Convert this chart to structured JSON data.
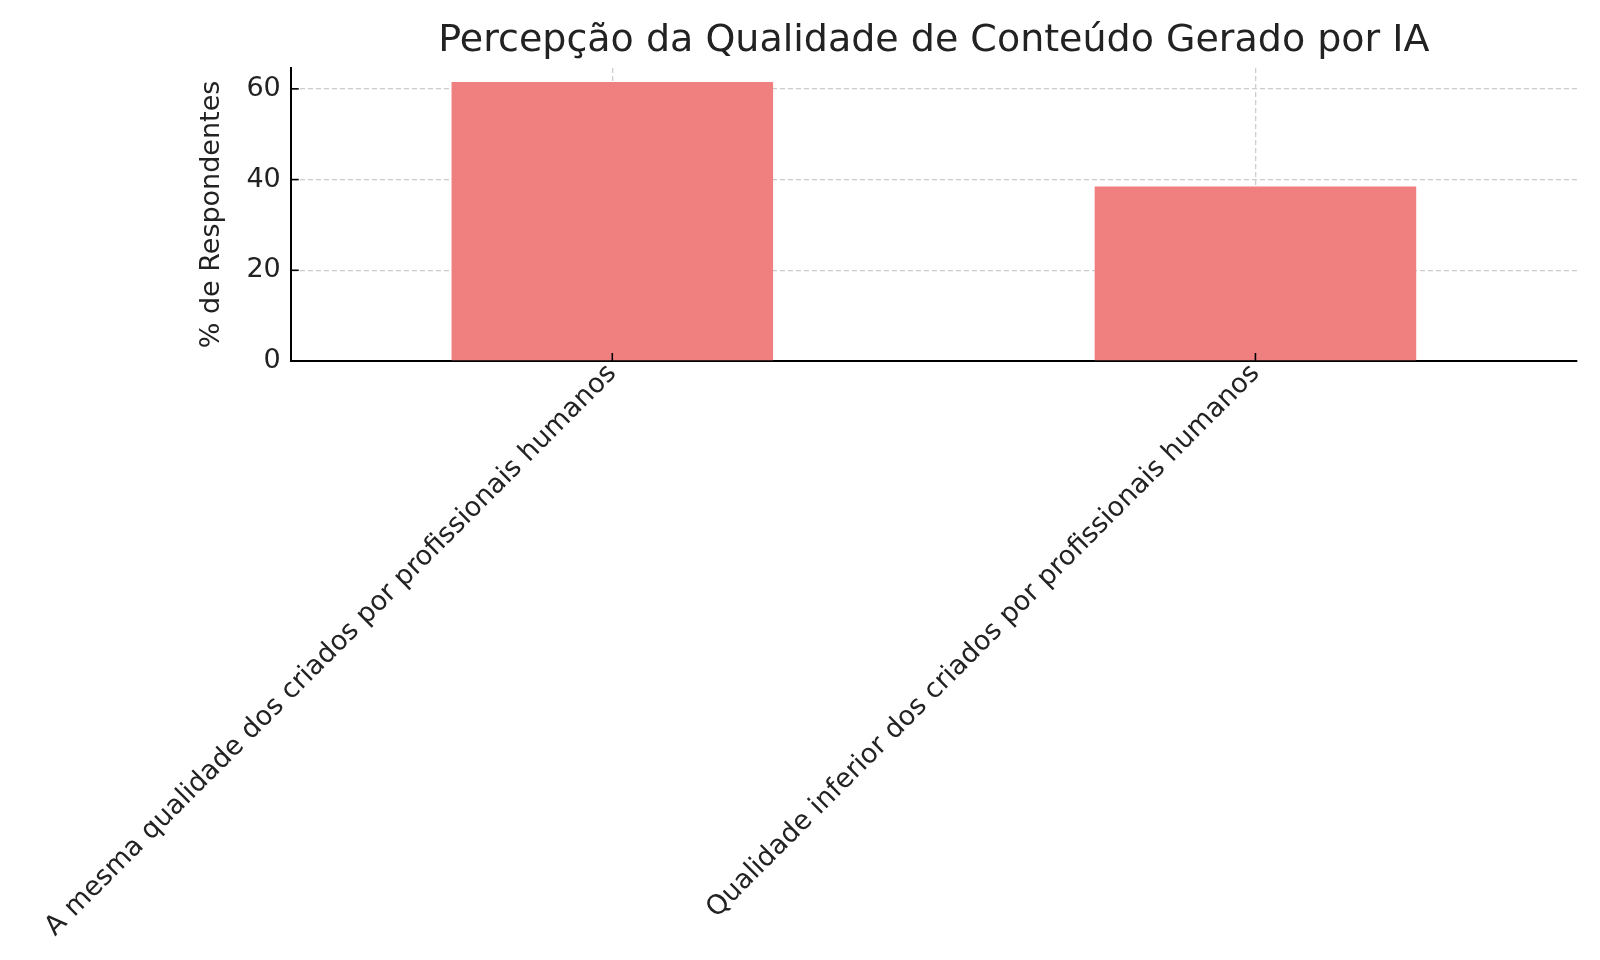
{
  "chart_data": {
    "type": "bar",
    "title": "Percepção da Qualidade de Conteúdo Gerado por IA",
    "ylabel": "% de Respondentes",
    "categories": [
      "A mesma qualidade dos criados por profissionais humanos",
      "Qualidade inferior dos criados por profissionais humanos"
    ],
    "values": [
      61.5,
      38.5
    ],
    "color": "#f08080",
    "ylim": [
      0,
      64.6
    ],
    "yticks": [
      0,
      20,
      40,
      60
    ],
    "grid": true
  }
}
